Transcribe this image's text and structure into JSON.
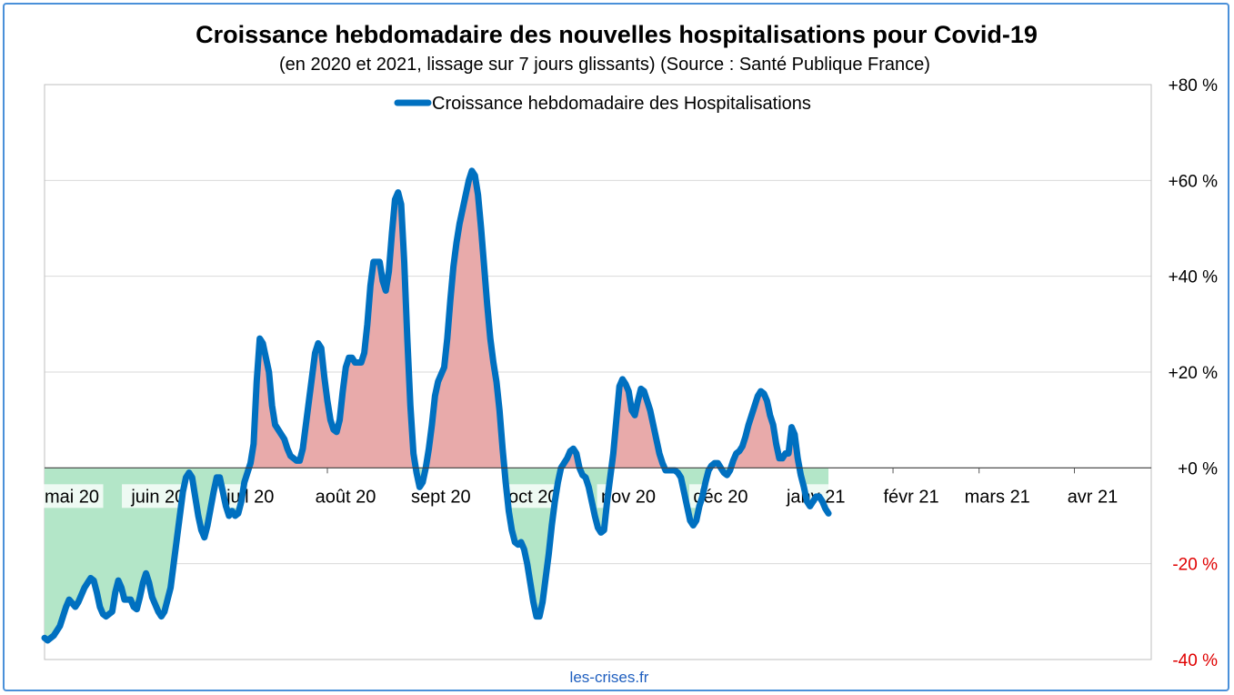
{
  "chart_data": {
    "type": "line",
    "title": "Croissance hebdomadaire des nouvelles hospitalisations pour Covid-19",
    "subtitle": "(en 2020 et 2021, lissage sur 7 jours glissants) (Source : Santé Publique France)",
    "source_label": "les-crises.fr",
    "xlabel": "",
    "ylabel": "",
    "ylim": [
      -40,
      80
    ],
    "y_ticks": [
      {
        "value": 80,
        "label": "+80 %"
      },
      {
        "value": 60,
        "label": "+60 %"
      },
      {
        "value": 40,
        "label": "+40 %"
      },
      {
        "value": 20,
        "label": "+20 %"
      },
      {
        "value": 0,
        "label": "+0 %"
      },
      {
        "value": -20,
        "label": "-20 %"
      },
      {
        "value": -40,
        "label": "-40 %"
      }
    ],
    "x_ticks": [
      {
        "day": 0,
        "label": "mai 20"
      },
      {
        "day": 31,
        "label": "juin 20"
      },
      {
        "day": 61,
        "label": "juil 20"
      },
      {
        "day": 92,
        "label": "août 20"
      },
      {
        "day": 123,
        "label": "sept 20"
      },
      {
        "day": 153,
        "label": "oct 20"
      },
      {
        "day": 184,
        "label": "nov 20"
      },
      {
        "day": 214,
        "label": "déc 20"
      },
      {
        "day": 245,
        "label": "janv 21"
      },
      {
        "day": 276,
        "label": "févr 21"
      },
      {
        "day": 304,
        "label": "mars 21"
      },
      {
        "day": 335,
        "label": "avr 21"
      }
    ],
    "x_range": [
      0,
      360
    ],
    "grid": true,
    "legend_position": "top-center",
    "fill_positive_color": "#e8aaaa",
    "fill_negative_color": "#b3e6c8",
    "series": [
      {
        "name": "Croissance hebdomadaire des Hospitalisations",
        "color": "#0070c0",
        "points": [
          [
            0,
            -35.5
          ],
          [
            1,
            -36
          ],
          [
            3,
            -35
          ],
          [
            5,
            -33
          ],
          [
            7,
            -29
          ],
          [
            8,
            -27.5
          ],
          [
            10,
            -29
          ],
          [
            11,
            -28
          ],
          [
            13,
            -25
          ],
          [
            15,
            -23
          ],
          [
            16,
            -23.5
          ],
          [
            17,
            -26
          ],
          [
            18,
            -29
          ],
          [
            19,
            -30.5
          ],
          [
            20,
            -31
          ],
          [
            22,
            -30
          ],
          [
            23,
            -26
          ],
          [
            24,
            -23.5
          ],
          [
            25,
            -25
          ],
          [
            26,
            -27.5
          ],
          [
            28,
            -27.5
          ],
          [
            29,
            -29
          ],
          [
            30,
            -29.5
          ],
          [
            31,
            -27
          ],
          [
            32,
            -24
          ],
          [
            33,
            -22
          ],
          [
            34,
            -24
          ],
          [
            35,
            -27
          ],
          [
            37,
            -30
          ],
          [
            38,
            -31
          ],
          [
            39,
            -30
          ],
          [
            41,
            -25
          ],
          [
            42,
            -20
          ],
          [
            43,
            -15
          ],
          [
            45,
            -5
          ],
          [
            46,
            -2
          ],
          [
            47,
            -1
          ],
          [
            48,
            -2
          ],
          [
            49,
            -6
          ],
          [
            50,
            -10
          ],
          [
            51,
            -13
          ],
          [
            52,
            -14.5
          ],
          [
            53,
            -12
          ],
          [
            55,
            -5
          ],
          [
            56,
            -2
          ],
          [
            57,
            -2
          ],
          [
            58,
            -5
          ],
          [
            59,
            -8
          ],
          [
            60,
            -10
          ],
          [
            61,
            -9
          ],
          [
            62,
            -10
          ],
          [
            63,
            -9.5
          ],
          [
            64,
            -7
          ],
          [
            65,
            -3
          ],
          [
            67,
            1
          ],
          [
            68,
            5
          ],
          [
            69,
            18
          ],
          [
            70,
            27
          ],
          [
            71,
            26
          ],
          [
            72,
            23
          ],
          [
            73,
            20
          ],
          [
            74,
            13
          ],
          [
            75,
            9
          ],
          [
            76,
            8
          ],
          [
            77,
            7
          ],
          [
            78,
            6
          ],
          [
            79,
            4
          ],
          [
            80,
            2.5
          ],
          [
            81,
            2
          ],
          [
            82,
            1.5
          ],
          [
            83,
            1.5
          ],
          [
            84,
            4
          ],
          [
            85,
            9
          ],
          [
            86,
            14
          ],
          [
            87,
            19
          ],
          [
            88,
            24
          ],
          [
            89,
            26
          ],
          [
            90,
            25
          ],
          [
            91,
            19
          ],
          [
            92,
            14
          ],
          [
            93,
            10
          ],
          [
            94,
            8
          ],
          [
            95,
            7.5
          ],
          [
            96,
            10
          ],
          [
            97,
            16
          ],
          [
            98,
            21
          ],
          [
            99,
            23
          ],
          [
            100,
            23
          ],
          [
            101,
            22
          ],
          [
            102,
            22
          ],
          [
            103,
            22
          ],
          [
            104,
            24
          ],
          [
            105,
            30
          ],
          [
            106,
            38
          ],
          [
            107,
            43
          ],
          [
            108,
            43
          ],
          [
            109,
            43
          ],
          [
            110,
            39
          ],
          [
            111,
            37
          ],
          [
            112,
            41
          ],
          [
            113,
            49
          ],
          [
            114,
            56
          ],
          [
            115,
            57.5
          ],
          [
            116,
            55
          ],
          [
            117,
            43
          ],
          [
            118,
            27
          ],
          [
            119,
            13
          ],
          [
            120,
            3
          ],
          [
            121,
            -1
          ],
          [
            122,
            -4
          ],
          [
            123,
            -3
          ],
          [
            124,
            0
          ],
          [
            125,
            4
          ],
          [
            126,
            9
          ],
          [
            127,
            15
          ],
          [
            128,
            18
          ],
          [
            129,
            19.5
          ],
          [
            130,
            21
          ],
          [
            131,
            27
          ],
          [
            132,
            35
          ],
          [
            133,
            42
          ],
          [
            134,
            47
          ],
          [
            135,
            51
          ],
          [
            136,
            54
          ],
          [
            137,
            57
          ],
          [
            138,
            60
          ],
          [
            139,
            62
          ],
          [
            140,
            61
          ],
          [
            141,
            57
          ],
          [
            142,
            50
          ],
          [
            143,
            42
          ],
          [
            144,
            34
          ],
          [
            145,
            27
          ],
          [
            146,
            22
          ],
          [
            147,
            18
          ],
          [
            148,
            12
          ],
          [
            149,
            4
          ],
          [
            150,
            -3
          ],
          [
            151,
            -9
          ],
          [
            152,
            -13
          ],
          [
            153,
            -15.5
          ],
          [
            154,
            -16
          ],
          [
            155,
            -15.5
          ],
          [
            156,
            -17
          ],
          [
            157,
            -20
          ],
          [
            158,
            -24
          ],
          [
            159,
            -28
          ],
          [
            160,
            -31
          ],
          [
            161,
            -31
          ],
          [
            162,
            -28
          ],
          [
            163,
            -23
          ],
          [
            164,
            -18
          ],
          [
            165,
            -12
          ],
          [
            166,
            -7
          ],
          [
            167,
            -3
          ],
          [
            168,
            0
          ],
          [
            169,
            1
          ],
          [
            170,
            2
          ],
          [
            171,
            3.5
          ],
          [
            172,
            4
          ],
          [
            173,
            3
          ],
          [
            174,
            0
          ],
          [
            175,
            -1.5
          ],
          [
            176,
            -2
          ],
          [
            177,
            -4
          ],
          [
            178,
            -7
          ],
          [
            179,
            -10
          ],
          [
            180,
            -12.5
          ],
          [
            181,
            -13.5
          ],
          [
            182,
            -13
          ],
          [
            183,
            -7
          ],
          [
            184,
            -2
          ],
          [
            185,
            3
          ],
          [
            186,
            10
          ],
          [
            187,
            17
          ],
          [
            188,
            18.5
          ],
          [
            189,
            17.5
          ],
          [
            190,
            16
          ],
          [
            191,
            12
          ],
          [
            192,
            11
          ],
          [
            193,
            14
          ],
          [
            194,
            16.5
          ],
          [
            195,
            16
          ],
          [
            196,
            14
          ],
          [
            197,
            12
          ],
          [
            198,
            9
          ],
          [
            199,
            6
          ],
          [
            200,
            3
          ],
          [
            201,
            1
          ],
          [
            202,
            -0.5
          ],
          [
            203,
            -0.5
          ],
          [
            204,
            -0.5
          ],
          [
            205,
            -0.5
          ],
          [
            206,
            -1
          ],
          [
            207,
            -2
          ],
          [
            208,
            -5
          ],
          [
            209,
            -8
          ],
          [
            210,
            -11
          ],
          [
            211,
            -12
          ],
          [
            212,
            -11
          ],
          [
            213,
            -8
          ],
          [
            214,
            -6
          ],
          [
            215,
            -3
          ],
          [
            216,
            -0.5
          ],
          [
            217,
            0.5
          ],
          [
            218,
            1
          ],
          [
            219,
            1
          ],
          [
            220,
            0
          ],
          [
            221,
            -1
          ],
          [
            222,
            -1.5
          ],
          [
            223,
            -0.5
          ],
          [
            224,
            1.5
          ],
          [
            225,
            3
          ],
          [
            226,
            3.5
          ],
          [
            227,
            4.5
          ],
          [
            228,
            6.5
          ],
          [
            229,
            9
          ],
          [
            230,
            11
          ],
          [
            231,
            13
          ],
          [
            232,
            15
          ],
          [
            233,
            16
          ],
          [
            234,
            15.5
          ],
          [
            235,
            14
          ],
          [
            236,
            11
          ],
          [
            237,
            9
          ],
          [
            238,
            5
          ],
          [
            239,
            2
          ],
          [
            240,
            2
          ],
          [
            241,
            3
          ],
          [
            242,
            3
          ],
          [
            243,
            8.5
          ],
          [
            244,
            7
          ],
          [
            245,
            2
          ],
          [
            246,
            -1.5
          ],
          [
            247,
            -4
          ],
          [
            248,
            -7
          ],
          [
            249,
            -8
          ],
          [
            250,
            -7
          ],
          [
            251,
            -6
          ],
          [
            252,
            -6
          ],
          [
            253,
            -7
          ],
          [
            254,
            -8.5
          ],
          [
            255,
            -9.5
          ]
        ]
      }
    ]
  }
}
